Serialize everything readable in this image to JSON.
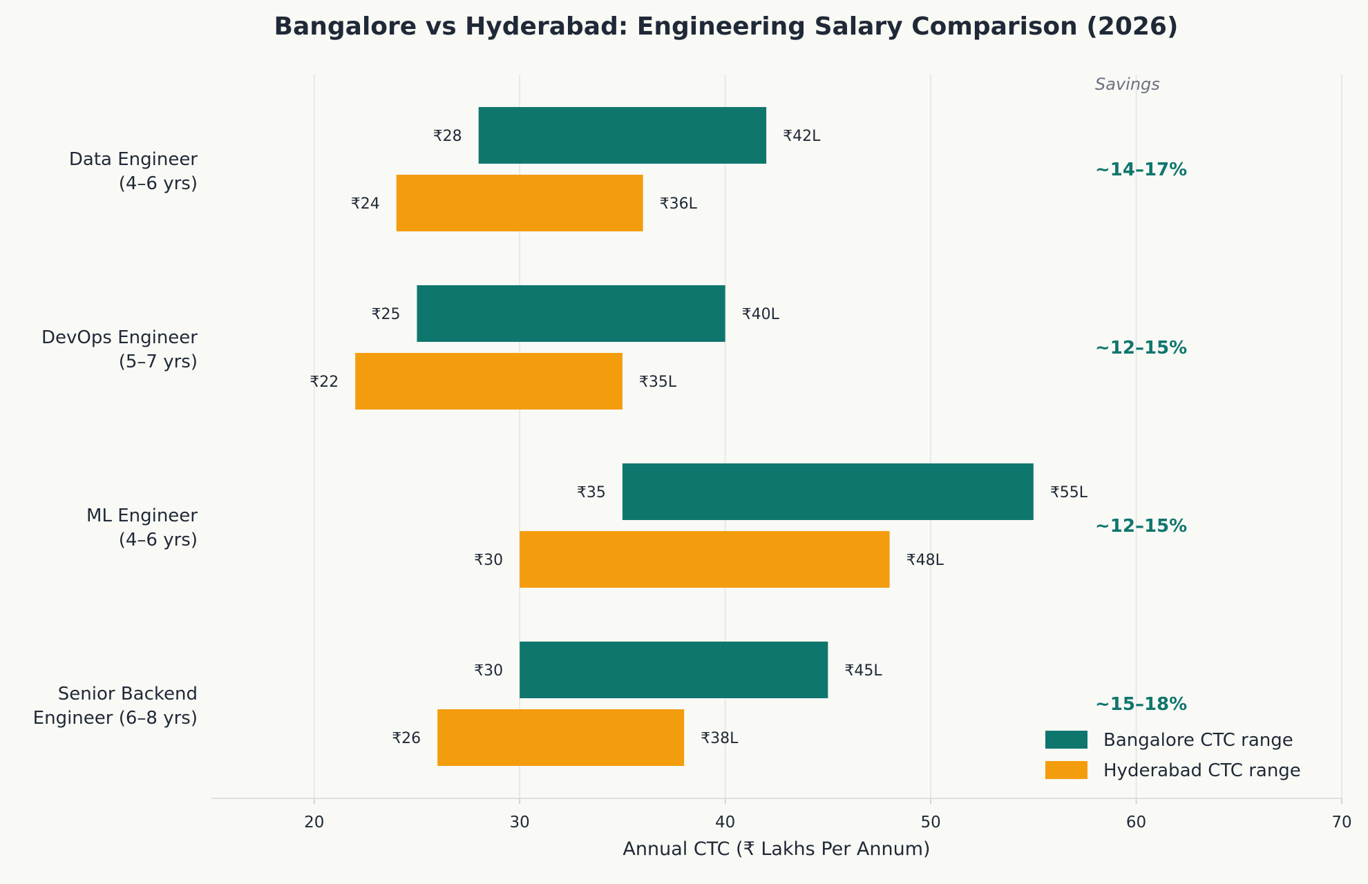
{
  "chart_data": {
    "type": "bar",
    "orientation": "horizontal",
    "title": "Bangalore vs Hyderabad: Engineering Salary Comparison (2026)",
    "xlabel": "Annual CTC (₹ Lakhs Per Annum)",
    "ylabel": "",
    "xlim": [
      15,
      70
    ],
    "xticks": [
      20,
      30,
      40,
      50,
      60,
      70
    ],
    "grid": "vertical",
    "legend_position": "bottom-right",
    "savings_header": "Savings",
    "categories": [
      {
        "line1": "Data Engineer",
        "line2": "(4–6 yrs)"
      },
      {
        "line1": "DevOps Engineer",
        "line2": "(5–7 yrs)"
      },
      {
        "line1": "ML Engineer",
        "line2": "(4–6 yrs)"
      },
      {
        "line1": "Senior Backend",
        "line2": "Engineer (6–8 yrs)"
      }
    ],
    "series": [
      {
        "name": "Bangalore CTC range",
        "color": "#0f766e",
        "ranges": [
          [
            28,
            42
          ],
          [
            25,
            40
          ],
          [
            35,
            55
          ],
          [
            30,
            45
          ]
        ],
        "low_labels": [
          "₹28",
          "₹25",
          "₹35",
          "₹30"
        ],
        "high_labels": [
          "₹42L",
          "₹40L",
          "₹55L",
          "₹45L"
        ]
      },
      {
        "name": "Hyderabad CTC range",
        "color": "#f39c0e",
        "ranges": [
          [
            24,
            36
          ],
          [
            22,
            35
          ],
          [
            30,
            48
          ],
          [
            26,
            38
          ]
        ],
        "low_labels": [
          "₹24",
          "₹22",
          "₹30",
          "₹26"
        ],
        "high_labels": [
          "₹36L",
          "₹35L",
          "₹48L",
          "₹38L"
        ]
      }
    ],
    "savings": [
      "~14–17%",
      "~12–15%",
      "~12–15%",
      "~15–18%"
    ]
  }
}
